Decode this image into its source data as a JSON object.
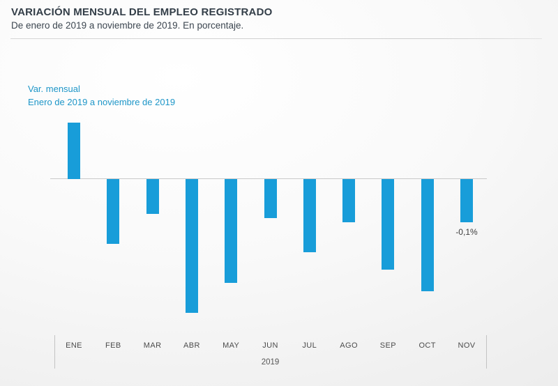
{
  "header": {
    "title": "VARIACIÓN MENSUAL DEL EMPLEO REGISTRADO",
    "subtitle": "De enero de 2019 a noviembre de 2019. En porcentaje."
  },
  "legend": {
    "line1": "Var. mensual",
    "line2": "Enero de 2019 a noviembre de 2019",
    "color": "#1e96c8"
  },
  "chart_data": {
    "type": "bar",
    "title": "VARIACIÓN MENSUAL DEL EMPLEO REGISTRADO",
    "subtitle": "De enero de 2019 a noviembre de 2019. En porcentaje.",
    "categories": [
      "ENE",
      "FEB",
      "MAR",
      "ABR",
      "MAY",
      "JUN",
      "JUL",
      "AGO",
      "SEP",
      "OCT",
      "NOV"
    ],
    "values": [
      0.13,
      -0.15,
      -0.08,
      -0.31,
      -0.24,
      -0.09,
      -0.17,
      -0.1,
      -0.21,
      -0.26,
      -0.1
    ],
    "unit": "percent",
    "xlabel": "2019",
    "ylim": [
      -0.35,
      0.15
    ],
    "grid": false,
    "bar_color": "#189dd9",
    "annotations": [
      {
        "category": "NOV",
        "category_index": 10,
        "text": "-0,1%"
      }
    ],
    "legend_position": "top-left"
  }
}
